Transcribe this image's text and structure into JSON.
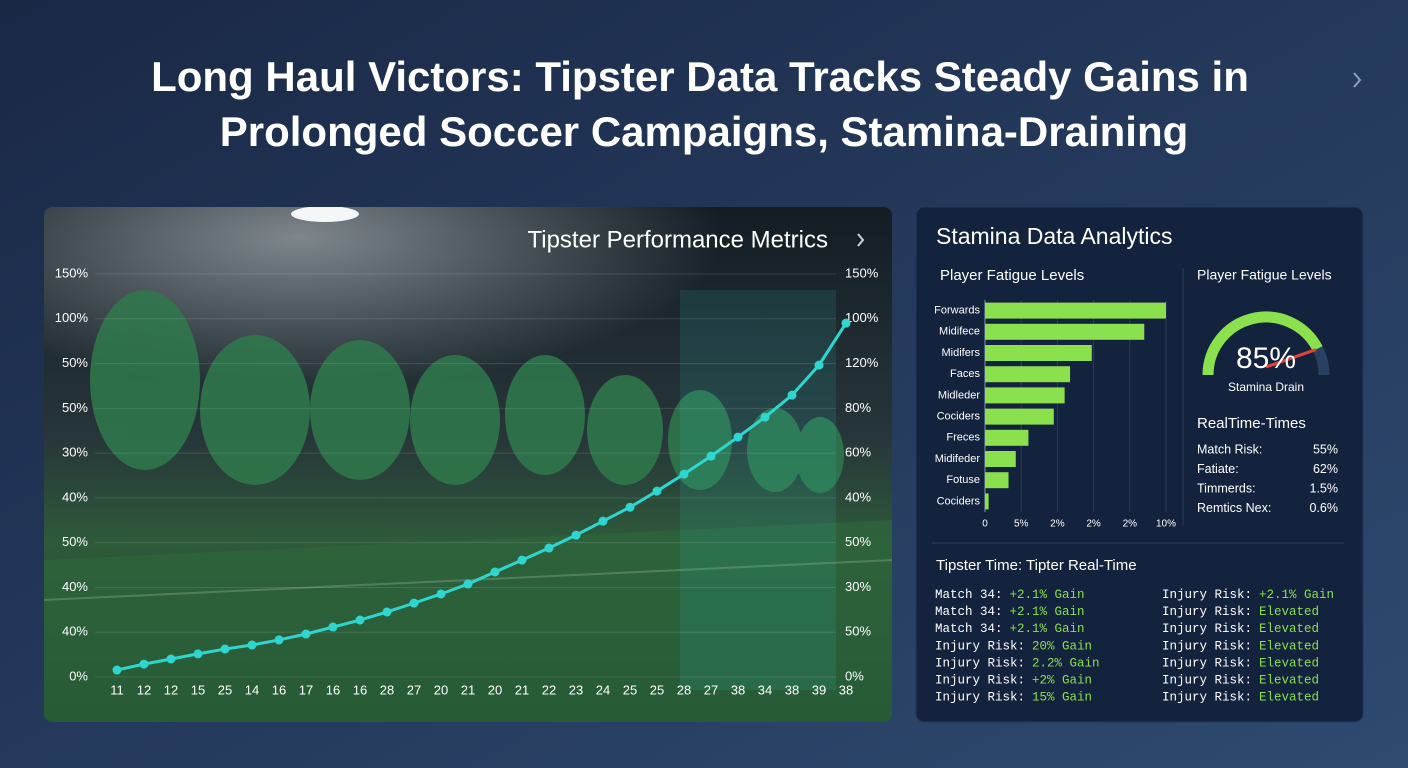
{
  "header": {
    "title_lines": [
      "Long Haul Victors: Tipster Data Tracks Steady Gains in",
      "Prolonged Soccer Campaigns, Stamina-Draining"
    ]
  },
  "chart_data": [
    {
      "type": "line",
      "title": "Tipster Performance Metrics",
      "categories": [
        "11",
        "12",
        "12",
        "15",
        "25",
        "14",
        "16",
        "17",
        "16",
        "16",
        "28",
        "27",
        "20",
        "21",
        "20",
        "21",
        "22",
        "23",
        "24",
        "25",
        "25",
        "28",
        "27",
        "38",
        "34",
        "38",
        "39",
        "38"
      ],
      "values": [
        2.6,
        4.8,
        6.7,
        8.6,
        10.4,
        11.9,
        13.8,
        16,
        18.6,
        21.2,
        24.2,
        27.5,
        30.9,
        34.6,
        39.1,
        43.5,
        48,
        52.8,
        58,
        63.2,
        69.2,
        75.5,
        82.2,
        89.3,
        96.7,
        104.9,
        116.1,
        131.7
      ],
      "color": "#2fd6d0",
      "ylim": [
        0,
        150
      ],
      "left_axis_labels": [
        "150%",
        "100%",
        "50%",
        "50%",
        "30%",
        "40%",
        "50%",
        "40%",
        "40%",
        "0%"
      ],
      "right_axis_labels": [
        "150%",
        "100%",
        "120%",
        "80%",
        "60%",
        "40%",
        "50%",
        "30%",
        "50%",
        "0%"
      ]
    },
    {
      "type": "hbar",
      "panel_title": "Stamina Data Analytics",
      "title": "Player Fatigue Levels",
      "categories": [
        "Forwards",
        "Midifece",
        "Midifers",
        "Faces",
        "Midleder",
        "Cociders",
        "Freces",
        "Midifeder",
        "Fotuse",
        "Cociders"
      ],
      "values": [
        10,
        8.8,
        5.9,
        4.7,
        4.4,
        3.8,
        2.4,
        1.7,
        1.3,
        0.2
      ],
      "color": "#8be04e",
      "xlim": [
        0,
        10
      ],
      "x_axis_labels": [
        "0",
        "5%",
        "2%",
        "2%",
        "2%",
        "10%"
      ]
    },
    {
      "type": "gauge",
      "title": "Player Fatigue Levels",
      "value": 85,
      "value_label": "85%",
      "caption": "Stamina Drain",
      "color": "#8be04e"
    }
  ],
  "realtime": {
    "title": "RealTime-Times",
    "rows": [
      [
        "Match Risk:",
        "55%"
      ],
      [
        "Fatiate:",
        "62%"
      ],
      [
        "Timmerds:",
        "1.5%"
      ],
      [
        "Remtics Nex:",
        "0.6%"
      ]
    ]
  },
  "feed": {
    "title": "Tipster Time: Tipter Real-Time",
    "left": [
      [
        "Match 34:",
        "+2.1% Gain"
      ],
      [
        "Match 34:",
        "+2.1% Gain"
      ],
      [
        "Match 34:",
        "+2.1% Gain"
      ],
      [
        "Injury Risk:",
        "20% Gain"
      ],
      [
        "Injury Risk:",
        "2.2% Gain"
      ],
      [
        "Injury Risk:",
        "+2% Gain"
      ],
      [
        "Injury Risk:",
        "15% Gain"
      ]
    ],
    "right": [
      [
        "Injury Risk:",
        "+2.1% Gain"
      ],
      [
        "Injury Risk:",
        "Elevated"
      ],
      [
        "Injury Risk:",
        "Elevated"
      ],
      [
        "Injury Risk:",
        "Elevated"
      ],
      [
        "Injury Risk:",
        "Elevated"
      ],
      [
        "Injury Risk:",
        "Elevated"
      ],
      [
        "Injury Risk:",
        "Elevated"
      ]
    ]
  }
}
